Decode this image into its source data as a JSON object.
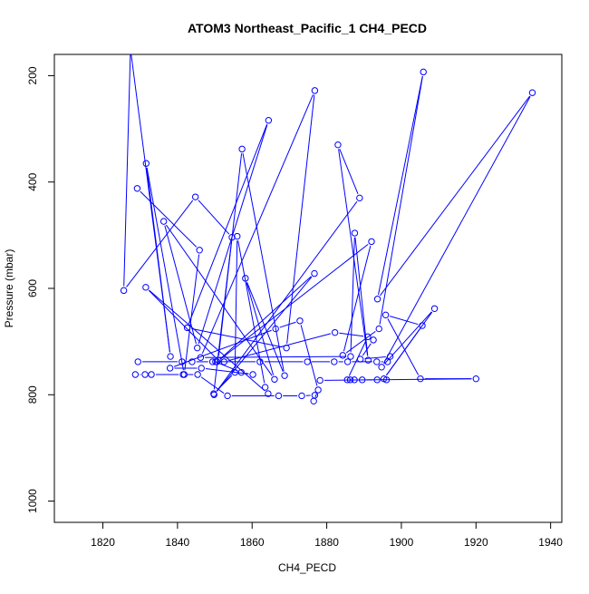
{
  "chart_data": {
    "type": "line",
    "title": "ATOM3 Northeast_Pacific_1 CH4_PECD",
    "xlabel": "CH4_PECD",
    "ylabel": "Pressure (mbar)",
    "xlim": [
      1807,
      1943
    ],
    "ylim": [
      1040,
      160
    ],
    "y_reversed": true,
    "grid": false,
    "legend": "none",
    "x_ticks": [
      "1820",
      "1840",
      "1860",
      "1880",
      "1900",
      "1920",
      "1940"
    ],
    "y_ticks": [
      "200",
      "400",
      "600",
      "800",
      "1000"
    ],
    "series_color": "#0000ff",
    "series": [
      {
        "segment_style": "lines+circles",
        "points": [
          {
            "x": 1829.2,
            "y": 412
          },
          {
            "x": 1845.9,
            "y": 528
          },
          {
            "x": 1841.8,
            "y": 762
          },
          {
            "x": 1831.6,
            "y": 365
          },
          {
            "x": 1838.1,
            "y": 728
          },
          {
            "x": 1827.4,
            "y": 150
          },
          {
            "x": 1825.6,
            "y": 604
          },
          {
            "x": 1844.8,
            "y": 428
          },
          {
            "x": 1854.6,
            "y": 504
          },
          {
            "x": 1849.7,
            "y": 798
          },
          {
            "x": 1855.4,
            "y": 758
          },
          {
            "x": 1856.0,
            "y": 502
          },
          {
            "x": 1863.5,
            "y": 786
          },
          {
            "x": 1864.3,
            "y": 798
          },
          {
            "x": 1831.5,
            "y": 598
          },
          {
            "x": 1850.9,
            "y": 735
          },
          {
            "x": 1857.3,
            "y": 338
          },
          {
            "x": 1868.7,
            "y": 764
          },
          {
            "x": 1858.2,
            "y": 581
          },
          {
            "x": 1866.0,
            "y": 771
          },
          {
            "x": 1836.3,
            "y": 474
          },
          {
            "x": 1845.3,
            "y": 712
          },
          {
            "x": 1864.4,
            "y": 284
          },
          {
            "x": 1842.6,
            "y": 674
          },
          {
            "x": 1869.2,
            "y": 712
          },
          {
            "x": 1876.8,
            "y": 228
          },
          {
            "x": 1846.2,
            "y": 730
          },
          {
            "x": 1886.4,
            "y": 728
          },
          {
            "x": 1887.5,
            "y": 496
          },
          {
            "x": 1891.1,
            "y": 735
          },
          {
            "x": 1883.0,
            "y": 330
          },
          {
            "x": 1888.8,
            "y": 430
          },
          {
            "x": 1849.8,
            "y": 800
          },
          {
            "x": 1876.7,
            "y": 572
          },
          {
            "x": 1850.6,
            "y": 738
          },
          {
            "x": 1892.0,
            "y": 512
          },
          {
            "x": 1884.3,
            "y": 726
          },
          {
            "x": 1894.0,
            "y": 676
          },
          {
            "x": 1905.9,
            "y": 193
          },
          {
            "x": 1893.6,
            "y": 620
          },
          {
            "x": 1935.1,
            "y": 232
          },
          {
            "x": 1894.7,
            "y": 748
          },
          {
            "x": 1908.9,
            "y": 638
          },
          {
            "x": 1895.3,
            "y": 770
          },
          {
            "x": 1905.6,
            "y": 670
          },
          {
            "x": 1895.8,
            "y": 650
          },
          {
            "x": 1905.1,
            "y": 770
          },
          {
            "x": 1920.0,
            "y": 770
          },
          {
            "x": 1878.2,
            "y": 773
          }
        ]
      },
      {
        "segment_style": "lines+circles",
        "points": [
          {
            "x": 1829.4,
            "y": 738
          },
          {
            "x": 1841.2,
            "y": 738
          },
          {
            "x": 1843.9,
            "y": 738
          },
          {
            "x": 1849.4,
            "y": 738
          },
          {
            "x": 1862.1,
            "y": 738
          },
          {
            "x": 1874.8,
            "y": 738
          },
          {
            "x": 1882.0,
            "y": 738
          },
          {
            "x": 1885.6,
            "y": 738
          },
          {
            "x": 1893.4,
            "y": 738
          },
          {
            "x": 1896.3,
            "y": 738
          },
          {
            "x": 1897.0,
            "y": 728
          },
          {
            "x": 1889.0,
            "y": 733
          },
          {
            "x": 1892.5,
            "y": 697
          }
        ]
      },
      {
        "segment_style": "lines+circles",
        "points": [
          {
            "x": 1828.7,
            "y": 762
          },
          {
            "x": 1831.3,
            "y": 762
          },
          {
            "x": 1833.0,
            "y": 762
          },
          {
            "x": 1841.5,
            "y": 762
          },
          {
            "x": 1845.4,
            "y": 762
          },
          {
            "x": 1853.4,
            "y": 802
          },
          {
            "x": 1867.1,
            "y": 802
          },
          {
            "x": 1873.3,
            "y": 802
          },
          {
            "x": 1876.8,
            "y": 801
          },
          {
            "x": 1876.5,
            "y": 812
          },
          {
            "x": 1877.7,
            "y": 791
          },
          {
            "x": 1872.8,
            "y": 661
          },
          {
            "x": 1866.3,
            "y": 676
          },
          {
            "x": 1838.0,
            "y": 750
          },
          {
            "x": 1846.4,
            "y": 750
          },
          {
            "x": 1860.2,
            "y": 762
          },
          {
            "x": 1857.1,
            "y": 758
          },
          {
            "x": 1850.2,
            "y": 738
          },
          {
            "x": 1852.5,
            "y": 738
          },
          {
            "x": 1882.2,
            "y": 683
          },
          {
            "x": 1891.0,
            "y": 691
          },
          {
            "x": 1885.5,
            "y": 772
          },
          {
            "x": 1886.3,
            "y": 772
          },
          {
            "x": 1887.4,
            "y": 772
          },
          {
            "x": 1889.5,
            "y": 772
          },
          {
            "x": 1893.5,
            "y": 772
          },
          {
            "x": 1896.0,
            "y": 772
          }
        ]
      }
    ]
  }
}
